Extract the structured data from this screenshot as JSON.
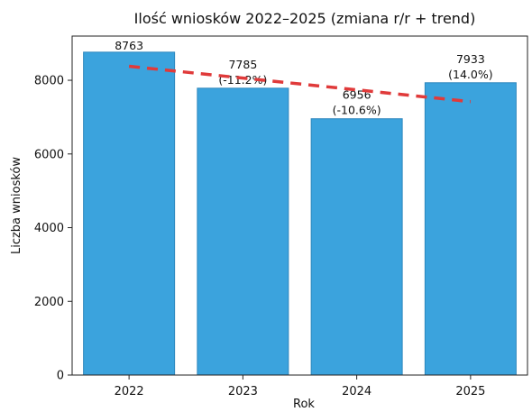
{
  "chart_data": {
    "type": "bar",
    "title": "Ilość wniosków 2022–2025 (zmiana r/r + trend)",
    "xlabel": "Rok",
    "ylabel": "Liczba wniosków",
    "categories": [
      "2022",
      "2023",
      "2024",
      "2025"
    ],
    "values": [
      8763,
      7785,
      6956,
      7933
    ],
    "value_labels": [
      "8763",
      "7785",
      "6956",
      "7933"
    ],
    "change_labels": [
      "",
      "(-11.2%)",
      "(-10.6%)",
      "(14.0%)"
    ],
    "yticks": [
      0,
      2000,
      4000,
      6000,
      8000
    ],
    "ylim": [
      0,
      9200
    ],
    "grid": false,
    "legend": "none",
    "trend": {
      "start": 8380,
      "end": 7420
    },
    "colors": {
      "bar": "#3ba3dd",
      "bar_edge": "#2c86bd",
      "trend": "#e03a3a",
      "axis": "#222222"
    }
  }
}
